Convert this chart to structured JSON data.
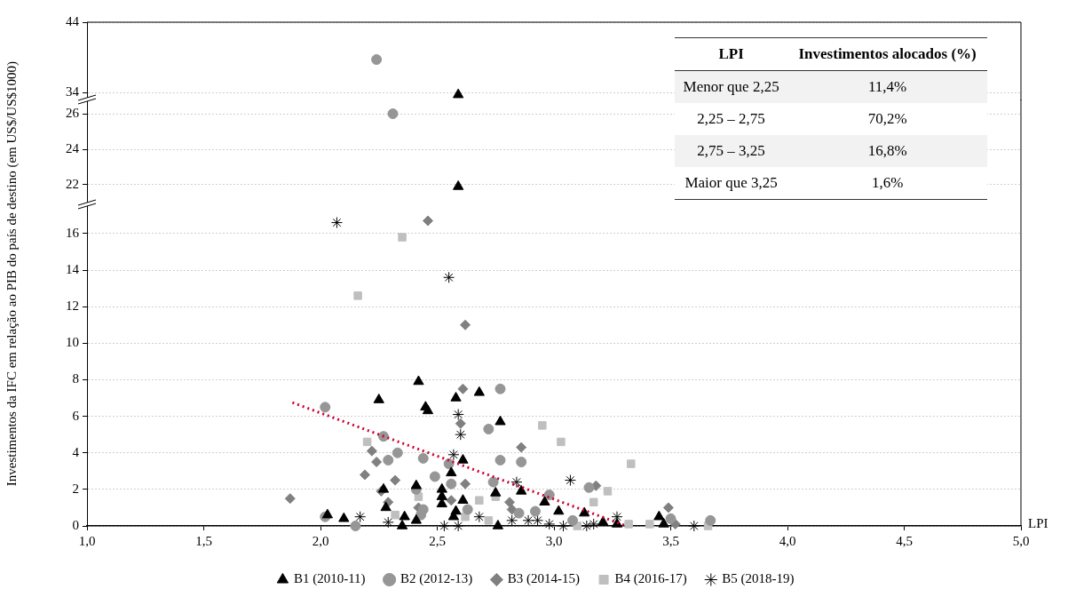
{
  "chart_data": [
    {
      "type": "scatter",
      "xlim": [
        1,
        5
      ],
      "ylim": [
        32.9,
        44
      ],
      "yticks": [
        34,
        44
      ],
      "grid": "y",
      "tick_labels": "y",
      "series": [
        {
          "color": "#969696",
          "marker": "circle",
          "x": [
            2.24
          ],
          "values": [
            38.7
          ]
        },
        {
          "color": "#000000",
          "marker": "triangle",
          "x": [
            2.59
          ],
          "values": [
            33.7
          ]
        }
      ]
    },
    {
      "type": "scatter",
      "xlim": [
        1,
        5
      ],
      "ylim": [
        20.9,
        26.8
      ],
      "yticks": [
        22,
        24,
        26
      ],
      "grid": "y",
      "tick_labels": "y",
      "series": [
        {
          "color": "#000000",
          "marker": "triangle",
          "x": [
            2.59
          ],
          "values": [
            21.9
          ]
        },
        {
          "color": "#969696",
          "marker": "circle",
          "x": [
            2.31
          ],
          "values": [
            26.0
          ]
        }
      ]
    },
    {
      "type": "scatter",
      "xlabel": "LPI",
      "ylabel": "Investimentos da IFC em relação ao PIB do país de destino (em US$/US$1000)",
      "xlim": [
        1,
        5
      ],
      "ylim": [
        0,
        17.6
      ],
      "xticks": [
        {
          "value": 1,
          "label": "1,0"
        },
        {
          "value": 1.5,
          "label": "1,5"
        },
        {
          "value": 2,
          "label": "2,0"
        },
        {
          "value": 2.5,
          "label": "2,5"
        },
        {
          "value": 3,
          "label": "3,0"
        },
        {
          "value": 3.5,
          "label": "3,5"
        },
        {
          "value": 4,
          "label": "4,0"
        },
        {
          "value": 4.5,
          "label": "4,5"
        },
        {
          "value": 5,
          "label": "5,0"
        }
      ],
      "yticks": [
        0,
        2,
        4,
        6,
        8,
        10,
        12,
        14,
        16
      ],
      "grid": "y",
      "legend": "bottom",
      "series": [
        {
          "name": "B1 (2010-11)",
          "color": "#000000",
          "marker": "triangle",
          "x": [
            2.42,
            2.45,
            2.46,
            2.25,
            2.58,
            2.68,
            2.77,
            2.61,
            2.56,
            2.27,
            2.41,
            2.28,
            2.03,
            2.1,
            2.36,
            2.35,
            2.41,
            2.86,
            2.52,
            2.52,
            2.52,
            2.61,
            2.75,
            2.96,
            3.02,
            2.58,
            2.57,
            2.76,
            3.13,
            3.21,
            3.27,
            3.45,
            3.47
          ],
          "values": [
            7.9,
            6.5,
            6.3,
            6.9,
            7.0,
            7.3,
            5.7,
            3.6,
            2.9,
            2.0,
            2.2,
            1.0,
            0.6,
            0.4,
            0.5,
            0.0,
            0.3,
            1.9,
            2.0,
            1.6,
            1.2,
            1.4,
            1.8,
            1.3,
            0.8,
            0.8,
            0.5,
            0.0,
            0.7,
            0.2,
            0.1,
            0.5,
            0.1
          ]
        },
        {
          "name": "B2 (2012-13)",
          "color": "#969696",
          "marker": "circle",
          "x": [
            2.02,
            2.27,
            2.33,
            2.29,
            2.44,
            2.41,
            2.02,
            2.15,
            2.43,
            2.77,
            2.72,
            2.86,
            2.77,
            2.55,
            2.49,
            2.56,
            2.74,
            3.15,
            2.98,
            2.44,
            2.63,
            2.85,
            2.92,
            3.08,
            3.5,
            3.67
          ],
          "values": [
            6.5,
            4.9,
            4.0,
            3.6,
            3.7,
            2.0,
            0.5,
            0.0,
            0.6,
            7.5,
            5.3,
            3.5,
            3.6,
            3.4,
            2.7,
            2.3,
            2.4,
            2.1,
            1.7,
            0.9,
            0.9,
            0.7,
            0.8,
            0.3,
            0.4,
            0.3
          ]
        },
        {
          "name": "B3 (2014-15)",
          "color": "#808080",
          "marker": "diamond",
          "x": [
            2.22,
            2.24,
            2.19,
            2.32,
            1.87,
            2.26,
            2.29,
            2.42,
            2.61,
            2.6,
            2.86,
            2.62,
            2.56,
            2.81,
            2.82,
            3.18,
            3.49,
            3.52,
            2.46,
            2.62
          ],
          "values": [
            4.1,
            3.5,
            2.8,
            2.5,
            1.5,
            1.9,
            1.3,
            1.0,
            7.5,
            5.6,
            4.3,
            2.3,
            1.4,
            1.3,
            0.9,
            2.2,
            1.0,
            0.1,
            16.7,
            11.0
          ]
        },
        {
          "name": "B4 (2016-17)",
          "color": "#bfbfbf",
          "marker": "square",
          "x": [
            2.2,
            2.42,
            2.32,
            2.95,
            3.03,
            2.62,
            2.68,
            2.75,
            2.72,
            3.1,
            3.33,
            3.23,
            3.17,
            3.32,
            3.41,
            3.66,
            2.35,
            2.16
          ],
          "values": [
            4.6,
            1.6,
            0.6,
            5.5,
            4.6,
            0.5,
            1.4,
            1.6,
            0.3,
            0.0,
            3.4,
            1.9,
            1.3,
            0.1,
            0.1,
            0.0,
            15.8,
            12.6
          ]
        },
        {
          "name": "B5 (2018-19)",
          "color": "#000000",
          "marker": "cross",
          "x": [
            2.07,
            2.55,
            2.59,
            2.6,
            2.57,
            2.84,
            3.07,
            2.17,
            2.29,
            2.53,
            2.59,
            2.68,
            2.82,
            2.89,
            2.93,
            2.98,
            3.04,
            3.14,
            3.17,
            3.27,
            3.6
          ],
          "values": [
            16.6,
            13.6,
            6.1,
            5.0,
            3.9,
            2.4,
            2.5,
            0.5,
            0.2,
            0.0,
            0.0,
            0.5,
            0.3,
            0.3,
            0.3,
            0.1,
            0.0,
            0.0,
            0.1,
            0.5,
            0.0
          ]
        },
        {
          "type": "line",
          "color": "#cc0033",
          "line_style": "dotted",
          "marker": "none",
          "x": [
            1.88,
            3.31
          ],
          "values": [
            6.75,
            0
          ]
        }
      ]
    },
    {
      "type": "other",
      "xlabel": "LPI",
      "ylabel": "Investimentos alocados (%)",
      "categories": [
        "Menor que 2,25",
        "2,25 – 2,75",
        "2,75 – 3,25",
        "Maior que 3,25"
      ],
      "value_labels": [
        "11,4%",
        "70,2%",
        "16,8%",
        "1,6%"
      ]
    }
  ]
}
